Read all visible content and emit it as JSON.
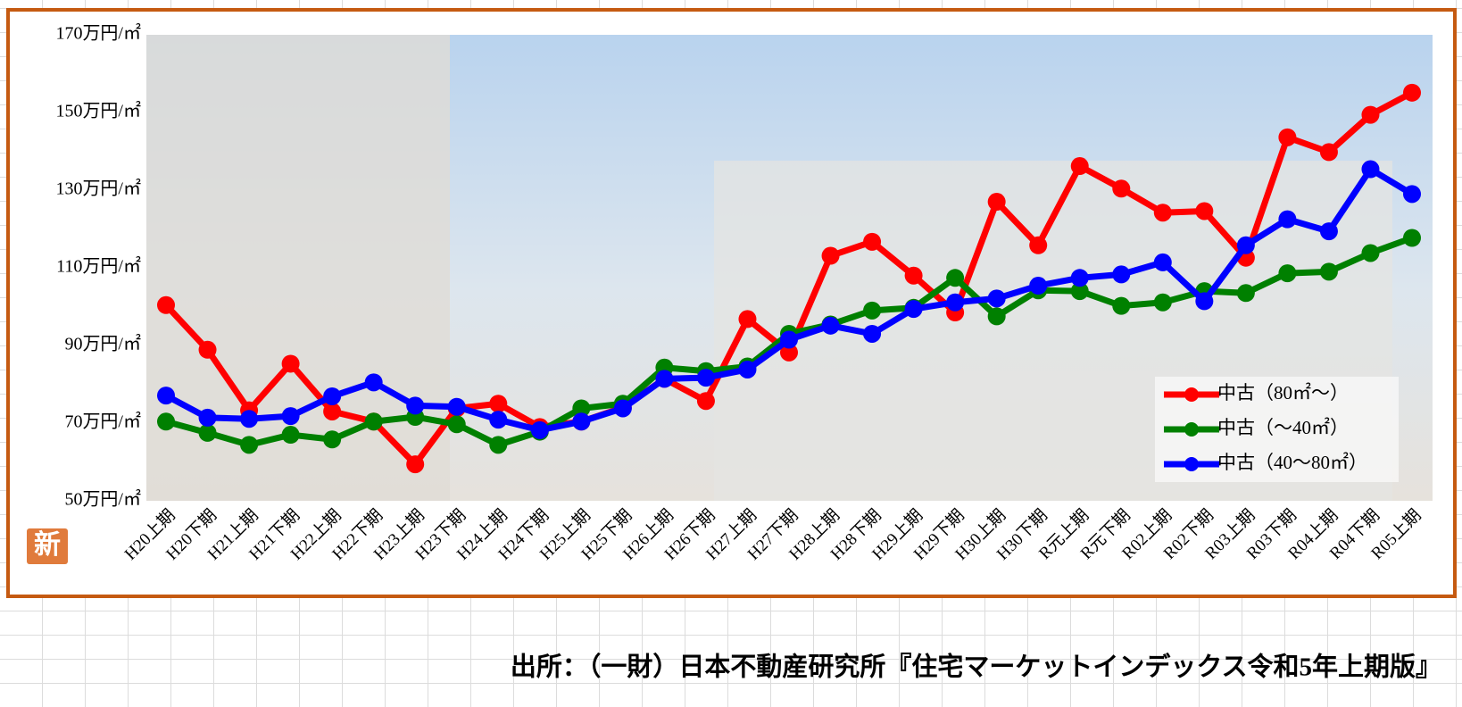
{
  "chart_data": {
    "type": "line",
    "categories": [
      "H20上期",
      "H20下期",
      "H21上期",
      "H21下期",
      "H22上期",
      "H22下期",
      "H23上期",
      "H23下期",
      "H24上期",
      "H24下期",
      "H25上期",
      "H25下期",
      "H26上期",
      "H26下期",
      "H27上期",
      "H27下期",
      "H28上期",
      "H28下期",
      "H29上期",
      "H29下期",
      "H30上期",
      "H30下期",
      "R元上期",
      "R元下期",
      "R02上期",
      "R02下期",
      "R03上期",
      "R03下期",
      "R04上期",
      "R04下期",
      "R05上期"
    ],
    "series": [
      {
        "name": "中古（80㎡～）",
        "color": "#ff0000",
        "values": [
          100.4,
          88.9,
          73.3,
          85.3,
          73,
          70.4,
          59.4,
          73.8,
          75,
          69,
          70.4,
          74,
          81.4,
          75.7,
          96.8,
          88.2,
          113.1,
          116.7,
          108,
          98.5,
          127,
          115.8,
          136.2,
          130.4,
          124.2,
          124.6,
          112.6,
          143.6,
          139.8,
          149.4,
          155.1
        ]
      },
      {
        "name": "中古（～40㎡）",
        "color": "#008000",
        "values": [
          70.4,
          67.5,
          64.4,
          67,
          65.8,
          70.4,
          71.6,
          69.7,
          64.4,
          67.8,
          73.8,
          75,
          84.3,
          83.4,
          84.6,
          93,
          95.4,
          99,
          99.7,
          107.4,
          97.5,
          104.2,
          104,
          100.2,
          101.1,
          104,
          103.5,
          108.6,
          109,
          113.8,
          117.7
        ]
      },
      {
        "name": "中古（40～80㎡）",
        "color": "#0000ff",
        "values": [
          77.1,
          71.4,
          71.1,
          71.8,
          76.9,
          80.5,
          74.5,
          74.2,
          70.9,
          68.2,
          70.4,
          73.8,
          81.4,
          81.7,
          83.8,
          91.5,
          95.1,
          93,
          99.4,
          101.1,
          102.1,
          105.4,
          107.4,
          108.3,
          111.4,
          101.4,
          115.8,
          122.5,
          119.4,
          135.4,
          129
        ]
      }
    ],
    "ylim": [
      50,
      170
    ],
    "yticks": [
      {
        "value": 50,
        "label": "50万円/㎡"
      },
      {
        "value": 70,
        "label": "70万円/㎡"
      },
      {
        "value": 90,
        "label": "90万円/㎡"
      },
      {
        "value": 110,
        "label": "110万円/㎡"
      },
      {
        "value": 130,
        "label": "130万円/㎡"
      },
      {
        "value": 150,
        "label": "150万円/㎡"
      },
      {
        "value": 170,
        "label": "170万円/㎡"
      }
    ],
    "grid": false,
    "legend": "lower right",
    "badge": "新",
    "source": "出所：（一財）日本不動産研究所『住宅マーケットインデックス令和5年上期版』"
  }
}
